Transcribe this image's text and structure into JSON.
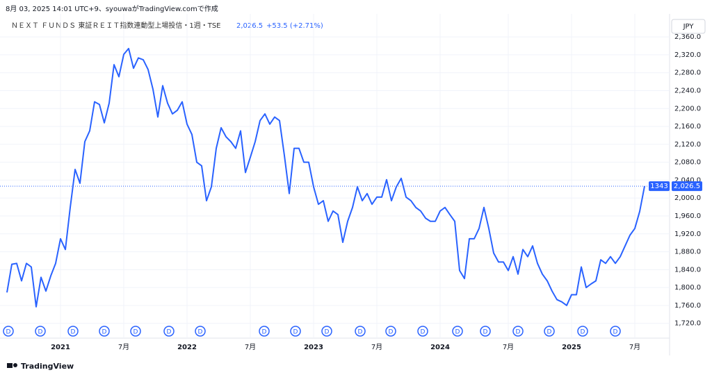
{
  "header": {
    "caption": "8月 03, 2025 14:01 UTC+9、syouwaがTradingView.comで作成",
    "symbol": "ＮＥＸＴ ＦＵＮＤＳ 東証ＲＥＩＴ指数連動型上場投信・1週・TSE",
    "change": "+53.5 (+2.71%)",
    "currency": "JPY",
    "brand": "TradingView"
  },
  "last_price": {
    "value": 2026.5,
    "label": "2,026.5",
    "countdown": "1343"
  },
  "dividend_labels": [
    "D",
    "D",
    "D",
    "D",
    "D",
    "D",
    "D",
    "D",
    "D",
    "D",
    "D",
    "D",
    "D",
    "D",
    "D",
    "D",
    "D",
    "D",
    "D"
  ],
  "chart_data": {
    "type": "line",
    "color": "#2962ff",
    "grid": true,
    "categories": [
      null,
      null,
      null,
      null,
      null,
      null,
      null,
      null,
      null,
      null,
      null,
      "2021",
      null,
      null,
      null,
      null,
      null,
      null,
      null,
      null,
      null,
      null,
      null,
      null,
      "7月",
      null,
      null,
      null,
      null,
      null,
      null,
      null,
      null,
      null,
      null,
      null,
      null,
      "2022",
      null,
      null,
      null,
      null,
      null,
      null,
      null,
      null,
      null,
      null,
      null,
      null,
      "7月",
      null,
      null,
      null,
      null,
      null,
      null,
      null,
      null,
      null,
      null,
      null,
      null,
      "2023",
      null,
      null,
      null,
      null,
      null,
      null,
      null,
      null,
      null,
      null,
      null,
      null,
      "7月",
      null,
      null,
      null,
      null,
      null,
      null,
      null,
      null,
      null,
      null,
      null,
      null,
      "2024",
      null,
      null,
      null,
      null,
      null,
      null,
      null,
      null,
      null,
      null,
      null,
      null,
      null,
      "7月",
      null,
      null,
      null,
      null,
      null,
      null,
      null,
      null,
      null,
      null,
      null,
      null,
      "2025",
      null,
      null,
      null,
      null,
      null,
      null,
      null,
      null,
      null,
      null,
      null,
      null,
      "7月",
      null,
      null
    ],
    "values": [
      1789,
      1852,
      1854,
      1815,
      1854,
      1846,
      1757,
      1823,
      1792,
      1826,
      1854,
      1909,
      1885,
      1979,
      2064,
      2033,
      2126,
      2150,
      2215,
      2209,
      2168,
      2212,
      2298,
      2271,
      2321,
      2334,
      2290,
      2313,
      2309,
      2287,
      2243,
      2181,
      2251,
      2212,
      2188,
      2196,
      2215,
      2165,
      2142,
      2080,
      2072,
      1994,
      2025,
      2111,
      2157,
      2137,
      2126,
      2111,
      2150,
      2057,
      2091,
      2126,
      2173,
      2188,
      2165,
      2181,
      2173,
      2095,
      2010,
      2111,
      2111,
      2080,
      2080,
      2025,
      1986,
      1994,
      1948,
      1971,
      1963,
      1901,
      1948,
      1979,
      2025,
      1994,
      2010,
      1986,
      2002,
      2002,
      2041,
      1994,
      2025,
      2044,
      2002,
      1994,
      1979,
      1971,
      1955,
      1948,
      1948,
      1971,
      1979,
      1963,
      1948,
      1838,
      1820,
      1909,
      1909,
      1932,
      1979,
      1932,
      1877,
      1857,
      1857,
      1838,
      1869,
      1830,
      1885,
      1869,
      1893,
      1854,
      1830,
      1815,
      1792,
      1773,
      1768,
      1760,
      1784,
      1784,
      1846,
      1800,
      1808,
      1815,
      1862,
      1854,
      1869,
      1854,
      1869,
      1893,
      1917,
      1932,
      1970,
      2026.5
    ],
    "ylim": [
      1687,
      2399
    ],
    "yticks": [
      {
        "value": 1720,
        "label": "1,720.0"
      },
      {
        "value": 1760,
        "label": "1,760.0"
      },
      {
        "value": 1800,
        "label": "1,800.0"
      },
      {
        "value": 1840,
        "label": "1,840.0"
      },
      {
        "value": 1880,
        "label": "1,880.0"
      },
      {
        "value": 1920,
        "label": "1,920.0"
      },
      {
        "value": 1960,
        "label": "1,960.0"
      },
      {
        "value": 2000,
        "label": "2,000.0"
      },
      {
        "value": 2040,
        "label": "2,040.0"
      },
      {
        "value": 2080,
        "label": "2,080.0"
      },
      {
        "value": 2120,
        "label": "2,120.0"
      },
      {
        "value": 2160,
        "label": "2,160.0"
      },
      {
        "value": 2200,
        "label": "2,200.0"
      },
      {
        "value": 2240,
        "label": "2,240.0"
      },
      {
        "value": 2280,
        "label": "2,280.0"
      },
      {
        "value": 2320,
        "label": "2,320.0"
      },
      {
        "value": 2360,
        "label": "2,360.0"
      }
    ]
  }
}
